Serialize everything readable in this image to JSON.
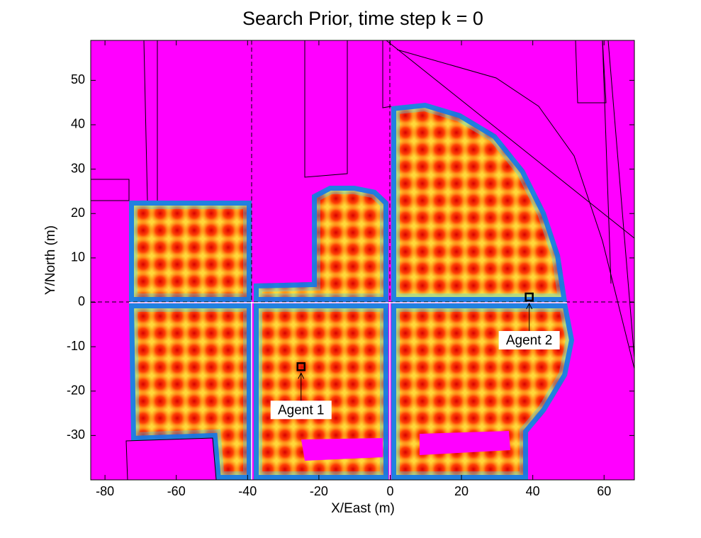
{
  "chart_data": {
    "type": "heatmap",
    "title": "Search Prior, time step k = 0",
    "x_label": "X/East (m)",
    "y_label": "Y/North (m)",
    "xlim": [
      -84,
      68.5
    ],
    "ylim": [
      -40,
      59
    ],
    "xticks": [
      -80,
      -60,
      -40,
      -20,
      0,
      20,
      40,
      60
    ],
    "yticks": [
      -30,
      -20,
      -10,
      0,
      10,
      20,
      30,
      40,
      50
    ],
    "agents": [
      {
        "label": "Agent 1",
        "x": -25,
        "y": -14.5
      },
      {
        "label": "Agent 2",
        "x": 39,
        "y": 1.2
      }
    ]
  }
}
